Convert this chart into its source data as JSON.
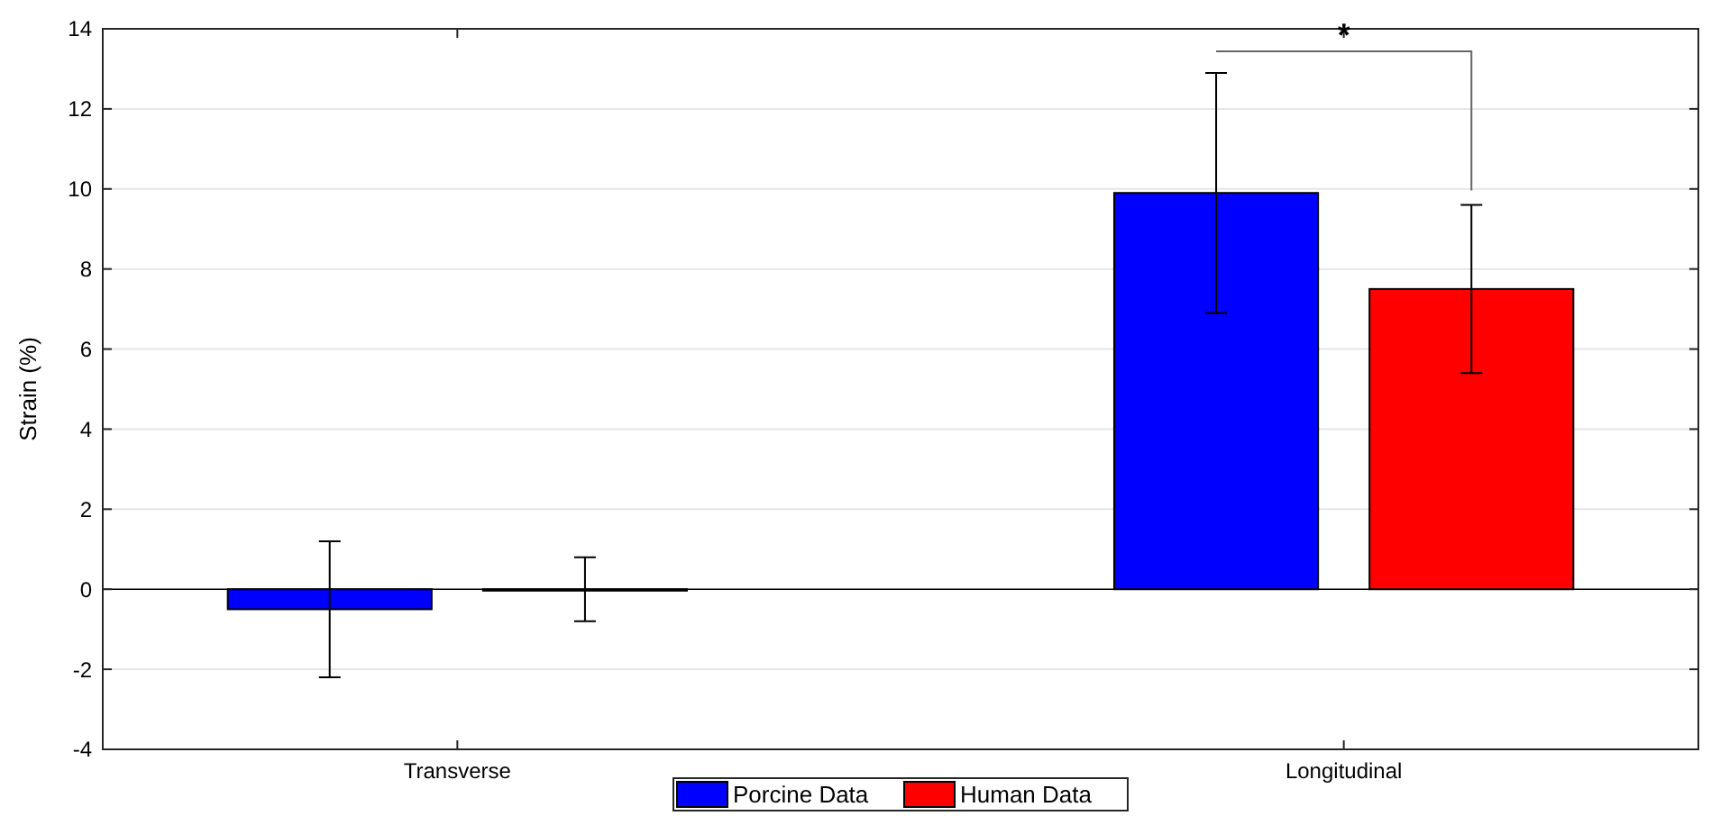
{
  "chart_data": {
    "type": "bar",
    "ylabel": "Strain (%)",
    "categories": [
      "Transverse",
      "Longitudinal"
    ],
    "series": [
      {
        "name": "Porcine Data",
        "color": "#0000ff",
        "values": [
          -0.5,
          9.9
        ],
        "errors": [
          1.7,
          3.0
        ]
      },
      {
        "name": "Human Data",
        "color": "#ff0000",
        "values": [
          0.0,
          7.5
        ],
        "errors": [
          0.8,
          2.1
        ]
      }
    ],
    "ylim": [
      -4,
      14
    ],
    "yticks": [
      -4,
      -2,
      0,
      2,
      4,
      6,
      8,
      10,
      12,
      14
    ],
    "grid": "y",
    "legend": "bottom",
    "annotations": [
      "*"
    ]
  }
}
